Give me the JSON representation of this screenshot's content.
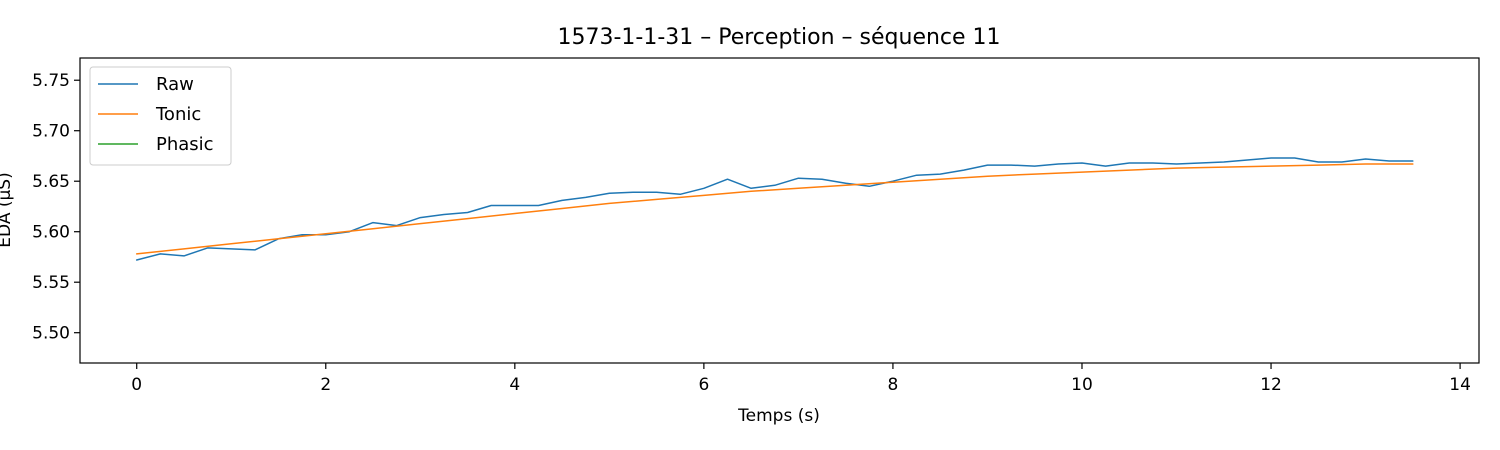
{
  "chart_data": {
    "type": "line",
    "title": "1573-1-1-31 – Perception – séquence 11",
    "xlabel": "Temps (s)",
    "ylabel": "EDA (µS)",
    "xlim": [
      -0.6,
      14.2
    ],
    "ylim": [
      5.47,
      5.772
    ],
    "xticks": [
      0,
      2,
      4,
      6,
      8,
      10,
      12,
      14
    ],
    "yticks": [
      5.5,
      5.55,
      5.6,
      5.65,
      5.7,
      5.75
    ],
    "legend_position": "top-left",
    "grid": false,
    "series": [
      {
        "name": "Raw",
        "color": "#1f77b4",
        "x": [
          0,
          0.25,
          0.5,
          0.75,
          1.0,
          1.25,
          1.5,
          1.75,
          2.0,
          2.25,
          2.5,
          2.75,
          3.0,
          3.25,
          3.5,
          3.75,
          4.0,
          4.25,
          4.5,
          4.75,
          5.0,
          5.25,
          5.5,
          5.75,
          6.0,
          6.25,
          6.5,
          6.75,
          7.0,
          7.25,
          7.5,
          7.75,
          8.0,
          8.25,
          8.5,
          8.75,
          9.0,
          9.25,
          9.5,
          9.75,
          10.0,
          10.25,
          10.5,
          10.75,
          11.0,
          11.25,
          11.5,
          11.75,
          12.0,
          12.25,
          12.5,
          12.75,
          13.0,
          13.25,
          13.5
        ],
        "y": [
          5.572,
          5.578,
          5.576,
          5.584,
          5.583,
          5.582,
          5.593,
          5.597,
          5.597,
          5.6,
          5.609,
          5.606,
          5.614,
          5.617,
          5.619,
          5.626,
          5.626,
          5.626,
          5.631,
          5.634,
          5.638,
          5.639,
          5.639,
          5.637,
          5.643,
          5.652,
          5.643,
          5.646,
          5.653,
          5.652,
          5.648,
          5.645,
          5.65,
          5.656,
          5.657,
          5.661,
          5.666,
          5.666,
          5.665,
          5.667,
          5.668,
          5.665,
          5.668,
          5.668,
          5.667,
          5.668,
          5.669,
          5.671,
          5.673,
          5.673,
          5.669,
          5.669,
          5.672,
          5.67,
          5.67
        ]
      },
      {
        "name": "Tonic",
        "color": "#ff7f0e",
        "x": [
          0,
          0.5,
          1.0,
          1.5,
          2.0,
          2.5,
          3.0,
          3.5,
          4.0,
          4.5,
          5.0,
          5.5,
          6.0,
          6.5,
          7.0,
          7.5,
          8.0,
          8.5,
          9.0,
          9.5,
          10.0,
          10.5,
          11.0,
          11.5,
          12.0,
          12.5,
          13.0,
          13.5
        ],
        "y": [
          5.578,
          5.583,
          5.588,
          5.593,
          5.598,
          5.603,
          5.608,
          5.613,
          5.618,
          5.623,
          5.628,
          5.632,
          5.636,
          5.64,
          5.643,
          5.646,
          5.649,
          5.652,
          5.655,
          5.657,
          5.659,
          5.661,
          5.663,
          5.664,
          5.665,
          5.666,
          5.667,
          5.667
        ]
      },
      {
        "name": "Phasic",
        "color": "#2ca02c",
        "x": [],
        "y": []
      }
    ]
  }
}
